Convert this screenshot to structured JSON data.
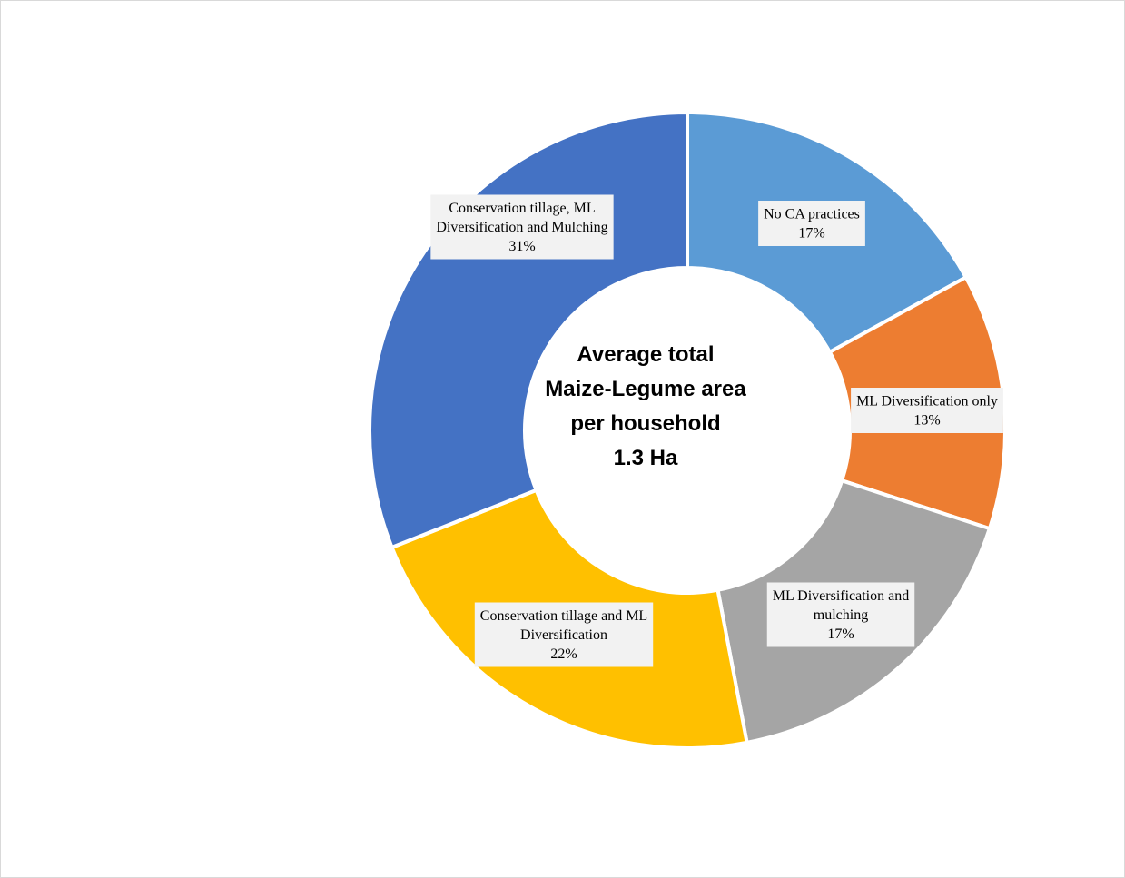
{
  "chart_data": {
    "type": "pie",
    "variant": "doughnut",
    "center_text": [
      "Average total",
      "Maize-Legume area",
      "per household",
      "1.3 Ha"
    ],
    "slices": [
      {
        "label_lines": [
          "No CA practices"
        ],
        "value": 17,
        "value_label": "17%",
        "color": "#5B9BD5"
      },
      {
        "label_lines": [
          "ML Diversification only"
        ],
        "value": 13,
        "value_label": "13%",
        "color": "#ED7D31"
      },
      {
        "label_lines": [
          "ML Diversification and",
          "mulching"
        ],
        "value": 17,
        "value_label": "17%",
        "color": "#A5A5A5"
      },
      {
        "label_lines": [
          "Conservation tillage and ML",
          "Diversification"
        ],
        "value": 22,
        "value_label": "22%",
        "color": "#FFC000"
      },
      {
        "label_lines": [
          "Conservation tillage, ML",
          "Diversification and Mulching"
        ],
        "value": 31,
        "value_label": "31%",
        "color": "#4472C4"
      }
    ]
  }
}
